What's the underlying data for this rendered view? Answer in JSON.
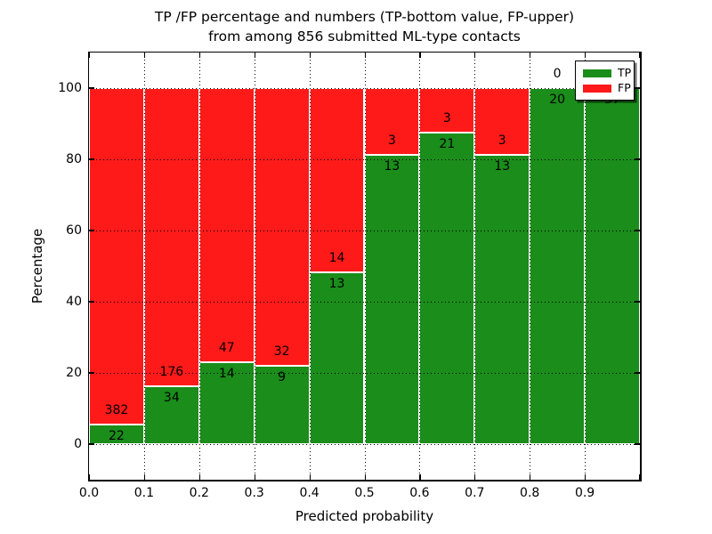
{
  "chart_data": {
    "type": "bar",
    "stacked": true,
    "normalized": "percent-of-bin-total",
    "title_line1": "TP /FP percentage and numbers (TP-bottom value, FP-upper)",
    "title_line2": "from among 856 submitted ML-type contacts",
    "xlabel": "Predicted probability",
    "ylabel": "Percentage",
    "bin_starts": [
      0.0,
      0.1,
      0.2,
      0.3,
      0.4,
      0.5,
      0.6,
      0.7,
      0.8,
      0.9
    ],
    "bin_width": 0.1,
    "series": [
      {
        "name": "TP",
        "color": "#1A8D1A",
        "counts": [
          22,
          34,
          14,
          9,
          13,
          13,
          21,
          13,
          20,
          37
        ]
      },
      {
        "name": "FP",
        "color": "#FF1A1A",
        "counts": [
          382,
          176,
          47,
          32,
          14,
          3,
          3,
          3,
          0,
          0
        ]
      }
    ],
    "tp_percent_of_bin": [
      5.4,
      16.2,
      23.0,
      22.0,
      48.1,
      81.2,
      87.5,
      81.2,
      100.0,
      100.0
    ],
    "x_tick_labels": [
      "0.0",
      "0.1",
      "0.2",
      "0.3",
      "0.4",
      "0.5",
      "0.6",
      "0.7",
      "0.8",
      "0.9"
    ],
    "y_tick_values": [
      0,
      20,
      40,
      60,
      80,
      100
    ],
    "y_tick_labels": [
      "0",
      "20",
      "40",
      "60",
      "80",
      "100"
    ],
    "xlim": [
      0.0,
      1.0
    ],
    "ylim": [
      -10,
      110
    ],
    "grid": true,
    "grid_style": "dotted",
    "legend_position": "upper right"
  }
}
